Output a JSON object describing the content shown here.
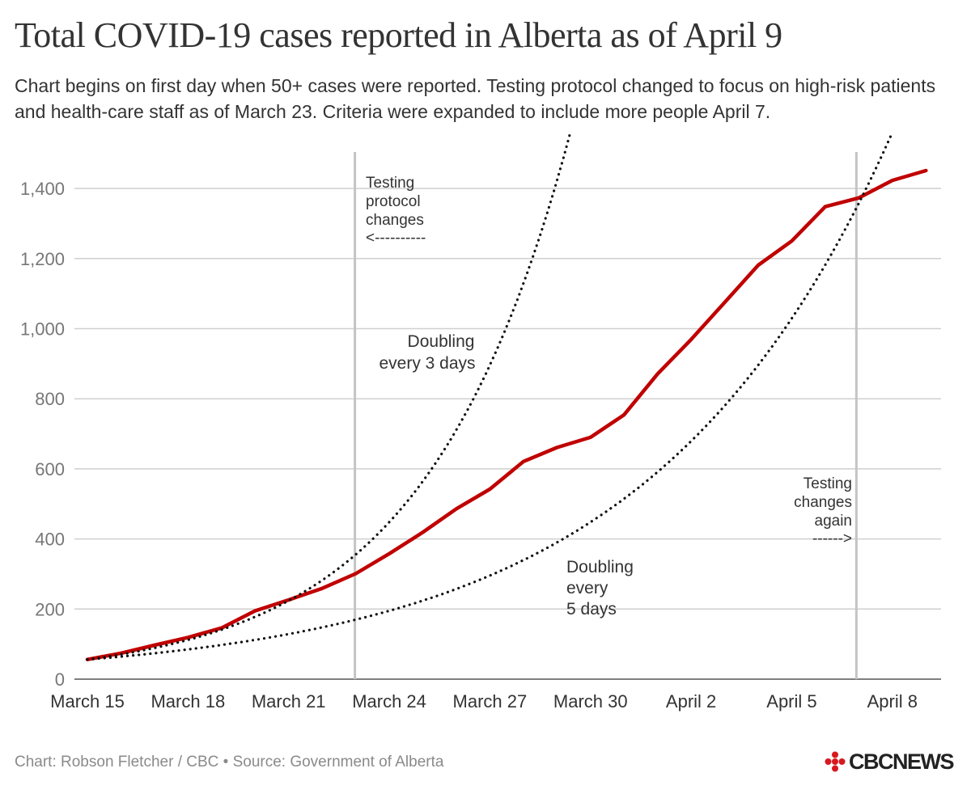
{
  "chart_data": {
    "type": "line",
    "title": "Total COVID-19 cases reported in Alberta as of April 9",
    "subtitle": "Chart begins on first day when 50+ cases were reported. Testing protocol changed to focus on high-risk patients and health-care staff as of March 23.  Criteria were expanded to include more people April 7.",
    "xlabel": "",
    "ylabel": "",
    "ylim": [
      0,
      1500
    ],
    "y_ticks": [
      0,
      200,
      400,
      600,
      800,
      1000,
      1200,
      1400
    ],
    "y_tick_labels": [
      "0",
      "200",
      "400",
      "600",
      "800",
      "1,000",
      "1,200",
      "1,400"
    ],
    "x_ticks": [
      0,
      3,
      6,
      9,
      12,
      15,
      18,
      21,
      24
    ],
    "x_tick_labels": [
      "March 15",
      "March 18",
      "March 21",
      "March 24",
      "March 27",
      "March 30",
      "April 2",
      "April 5",
      "April 8"
    ],
    "x_range": [
      0,
      25
    ],
    "grid": true,
    "series": [
      {
        "name": "Total cases",
        "color": "#c00000",
        "style": "solid",
        "x": [
          0,
          1,
          2,
          3,
          4,
          5,
          6,
          7,
          8,
          9,
          10,
          11,
          12,
          13,
          14,
          15,
          16,
          17,
          18,
          19,
          20,
          21,
          22,
          23,
          24,
          25
        ],
        "values": [
          56,
          74,
          97,
          119,
          146,
          195,
          226,
          259,
          301,
          358,
          419,
          486,
          542,
          621,
          661,
          690,
          754,
          871,
          969,
          1075,
          1181,
          1250,
          1348,
          1373,
          1423,
          1451
        ]
      },
      {
        "name": "Doubling every 3 days",
        "color": "#111111",
        "style": "dotted",
        "start": 56,
        "doubling_days": 3
      },
      {
        "name": "Doubling every 5 days",
        "color": "#111111",
        "style": "dotted",
        "start": 56,
        "doubling_days": 5
      }
    ],
    "vertical_markers": [
      {
        "x": 8,
        "label": "Testing protocol changes"
      },
      {
        "x": 23,
        "label": "Testing changes again"
      }
    ],
    "annotations": {
      "testing1": [
        "Testing",
        "protocol",
        "changes",
        "<----------"
      ],
      "testing2": [
        "Testing",
        "changes",
        "again",
        "------>"
      ],
      "doubling3": [
        "Doubling",
        "every 3 days"
      ],
      "doubling5": [
        "Doubling",
        "every",
        "5 days"
      ]
    }
  },
  "credit": "Chart: Robson Fletcher / CBC • Source: Government of Alberta",
  "logo": {
    "text": "CBCNEWS",
    "color": "#d71920"
  }
}
